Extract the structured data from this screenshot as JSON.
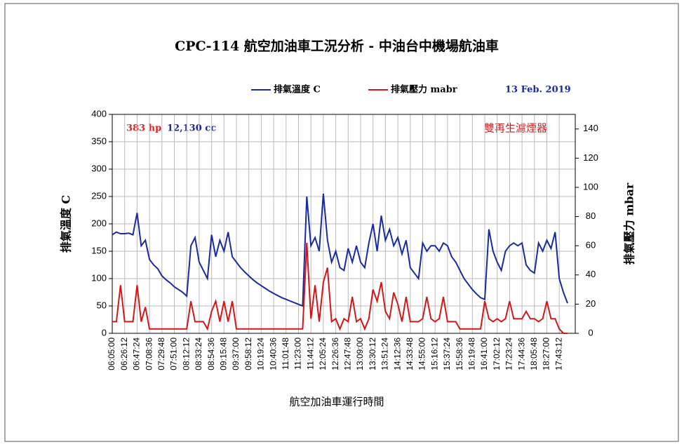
{
  "chart_data": {
    "type": "line",
    "title": "CPC-114 航空加油車工況分析 - 中油台中機場航油車",
    "date": "13 Feb. 2019",
    "annotations": [
      {
        "text": "383 hp",
        "color": "#e02020"
      },
      {
        "text": "12,130 cc",
        "color": "#1a2a9a"
      },
      {
        "text": "雙再生濾煙器",
        "color": "#d02020"
      }
    ],
    "y_label": "排氣溫度 C",
    "y2_label": "排氣壓力 mbar",
    "x_label": "航空加油車運行時間",
    "grid": true,
    "categories": [
      "06:05:00",
      null,
      null,
      "06:26:12",
      null,
      null,
      "06:47:24",
      null,
      null,
      "07:08:36",
      null,
      null,
      "07:29:48",
      null,
      null,
      "07:51:00",
      null,
      null,
      "08:12:12",
      null,
      null,
      "08:33:24",
      null,
      null,
      "08:54:36",
      null,
      null,
      "09:15:48",
      null,
      null,
      "09:37:00",
      null,
      null,
      "09:58:12",
      null,
      null,
      "10:19:24",
      null,
      null,
      "10:40:36",
      null,
      null,
      "11:01:48",
      null,
      null,
      "11:23:00",
      null,
      null,
      "11:44:12",
      null,
      null,
      "12:05:24",
      null,
      null,
      "12:26:36",
      null,
      null,
      "12:47:48",
      null,
      null,
      "13:09:00",
      null,
      null,
      "13:30:12",
      null,
      null,
      "13:51:24",
      null,
      null,
      "14:12:36",
      null,
      null,
      "14:33:48",
      null,
      null,
      "14:55:00",
      null,
      null,
      "15:16:12",
      null,
      null,
      "15:37:24",
      null,
      null,
      "15:58:36",
      null,
      null,
      "16:19:48",
      null,
      null,
      "16:41:00",
      null,
      null,
      "17:02:12",
      null,
      null,
      "17:23:24",
      null,
      null,
      "17:44:36",
      null,
      null,
      "18:05:48",
      null,
      null,
      "18:27:00",
      null,
      null,
      "17:43:12",
      null,
      null
    ],
    "series": [
      {
        "name": "排氣溫度 C",
        "color": "#1a2aa0",
        "axis": "y",
        "values": [
          180,
          185,
          182,
          182,
          183,
          180,
          220,
          160,
          170,
          135,
          125,
          118,
          105,
          98,
          92,
          85,
          80,
          75,
          68,
          160,
          175,
          130,
          115,
          100,
          180,
          140,
          170,
          150,
          185,
          140,
          130,
          120,
          112,
          105,
          98,
          92,
          87,
          82,
          77,
          73,
          69,
          65,
          62,
          59,
          56,
          53,
          50,
          250,
          160,
          175,
          150,
          255,
          170,
          130,
          150,
          120,
          115,
          155,
          130,
          160,
          130,
          120,
          165,
          200,
          150,
          215,
          170,
          190,
          160,
          175,
          145,
          170,
          120,
          110,
          100,
          165,
          150,
          160,
          160,
          150,
          165,
          160,
          140,
          130,
          115,
          100,
          90,
          80,
          72,
          65,
          62,
          190,
          150,
          130,
          115,
          150,
          160,
          165,
          160,
          165,
          125,
          115,
          110,
          165,
          150,
          170,
          155,
          185,
          100,
          75,
          55
        ]
      },
      {
        "name": "排氣壓力 mabr",
        "color": "#d01818",
        "axis": "y2",
        "values": [
          8,
          8,
          33,
          8,
          8,
          8,
          33,
          8,
          18,
          3,
          3,
          3,
          3,
          3,
          3,
          3,
          3,
          3,
          3,
          22,
          8,
          8,
          8,
          3,
          15,
          22,
          8,
          22,
          8,
          22,
          3,
          3,
          3,
          3,
          3,
          3,
          3,
          3,
          3,
          3,
          3,
          3,
          3,
          3,
          3,
          3,
          3,
          62,
          10,
          33,
          8,
          35,
          45,
          8,
          10,
          3,
          10,
          8,
          25,
          8,
          10,
          3,
          10,
          30,
          22,
          35,
          15,
          10,
          28,
          20,
          8,
          25,
          8,
          8,
          8,
          10,
          25,
          10,
          8,
          10,
          25,
          8,
          8,
          8,
          3,
          3,
          3,
          3,
          3,
          3,
          22,
          10,
          8,
          10,
          8,
          10,
          22,
          10,
          10,
          10,
          15,
          10,
          10,
          8,
          10,
          22,
          10,
          10,
          3,
          0,
          0
        ]
      }
    ],
    "ylim": [
      0,
      400
    ],
    "yticks": [
      0,
      50,
      100,
      150,
      200,
      250,
      300,
      350,
      400
    ],
    "y2lim": [
      0,
      150
    ],
    "y2ticks": [
      0,
      20,
      40,
      60,
      80,
      100,
      120,
      140
    ]
  }
}
